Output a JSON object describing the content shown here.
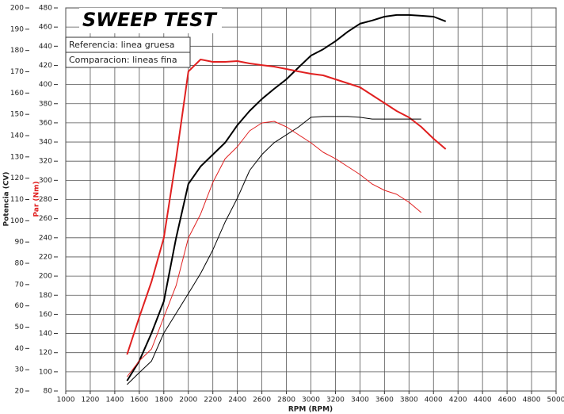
{
  "chart_data": {
    "type": "line",
    "title": "SWEEP TEST",
    "legend": [
      "Referencia: linea gruesa",
      "Comparacion: lineas fina"
    ],
    "xlabel": "RPM (RPM)",
    "ylabel": "Potencia (CV)",
    "y2label": "Par (Nm)",
    "x": [
      1500,
      1600,
      1700,
      1800,
      1900,
      2000,
      2100,
      2200,
      2300,
      2400,
      2500,
      2600,
      2700,
      2800,
      2900,
      3000,
      3100,
      3200,
      3300,
      3400,
      3500,
      3600,
      3700,
      3800,
      3900,
      4000,
      4100
    ],
    "series": [
      {
        "color": "#000000",
        "line_width": 2,
        "axis": "y",
        "values": [
          24.8,
          34.1,
          47.2,
          62.1,
          91.9,
          117.3,
          125.5,
          131.1,
          136.7,
          144.9,
          151.6,
          157.2,
          162.0,
          166.5,
          172.1,
          177.6,
          180.6,
          184.4,
          188.8,
          192.6,
          194.1,
          195.9,
          196.7,
          196.7,
          196.3,
          195.9,
          193.7
        ]
      },
      {
        "color": "#e02020",
        "line_width": 2,
        "axis": "y2",
        "values": [
          118.1,
          157.0,
          194.3,
          239.8,
          322.6,
          413.7,
          426.2,
          423.7,
          423.7,
          424.5,
          422.0,
          420.3,
          418.7,
          416.2,
          413.7,
          411.3,
          409.6,
          405.5,
          401.3,
          397.2,
          388.9,
          380.6,
          372.3,
          365.7,
          355.8,
          343.4,
          332.6
        ]
      },
      {
        "color": "#000000",
        "line_width": 1,
        "axis": "y",
        "values": [
          23.0,
          28.6,
          34.1,
          47.2,
          56.5,
          65.8,
          75.2,
          86.3,
          99.4,
          110.6,
          123.6,
          131.1,
          136.7,
          140.4,
          144.1,
          148.6,
          149.0,
          149.0,
          149.0,
          148.6,
          147.8,
          147.8,
          147.8,
          147.8,
          147.8,
          null,
          null
        ]
      },
      {
        "color": "#e02020",
        "line_width": 1,
        "axis": "y2",
        "values": [
          94.9,
          111.5,
          123.9,
          157.0,
          190.1,
          239.8,
          264.7,
          297.8,
          322.6,
          335.1,
          351.6,
          359.9,
          361.6,
          355.8,
          347.5,
          339.2,
          329.3,
          322.6,
          314.4,
          306.1,
          296.1,
          289.5,
          285.4,
          277.1,
          266.3,
          null,
          null
        ]
      }
    ],
    "xlim": [
      1000,
      5000
    ],
    "xticks": [
      1000,
      1200,
      1400,
      1600,
      1800,
      2000,
      2200,
      2400,
      2600,
      2800,
      3000,
      3200,
      3400,
      3600,
      3800,
      4000,
      4200,
      4400,
      4600,
      4800,
      5000
    ],
    "ylim": [
      20,
      200
    ],
    "yticks": [
      20,
      30,
      40,
      50,
      60,
      70,
      80,
      90,
      100,
      110,
      120,
      130,
      140,
      150,
      160,
      170,
      180,
      190,
      200
    ],
    "y2lim": [
      80,
      480
    ],
    "y2ticks": [
      80,
      100,
      120,
      140,
      160,
      180,
      200,
      220,
      240,
      260,
      280,
      300,
      320,
      340,
      360,
      380,
      400,
      420,
      440,
      460,
      480
    ],
    "y2color": "#e02020",
    "grid": true
  }
}
